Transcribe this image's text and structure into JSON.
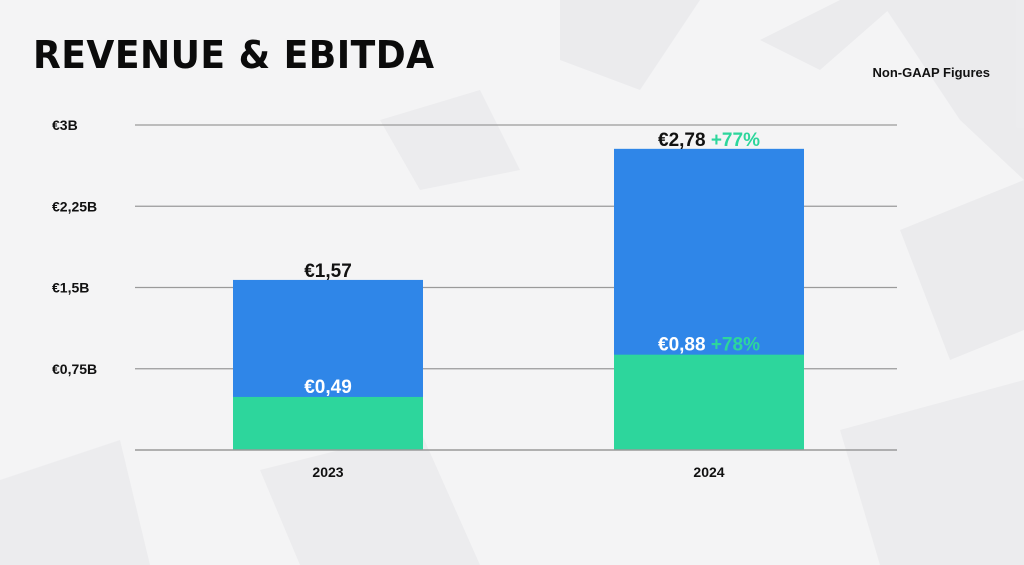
{
  "header": {
    "title": "REVENUE & EBITDA",
    "note": "Non-GAAP Figures"
  },
  "colors": {
    "revenue": "#2f86e8",
    "ebitda": "#2dd69c",
    "growth": "#2dd69c",
    "gridline": "#9a9a9a",
    "text": "#111111",
    "label_light": "#ffffff"
  },
  "chart_data": {
    "type": "bar",
    "stacked": false,
    "overlay": true,
    "categories": [
      "2023",
      "2024"
    ],
    "y_tick_labels": [
      "€3B",
      "€2,25B",
      "€1,5B",
      "€0,75B"
    ],
    "y_ticks": [
      3,
      2.25,
      1.5,
      0.75
    ],
    "ylim": [
      0,
      3
    ],
    "grid": true,
    "series": [
      {
        "key": "revenue",
        "values": [
          1.57,
          2.78
        ],
        "labels": [
          "€1,57",
          "€2,78"
        ],
        "growth": [
          "",
          "+77%"
        ]
      },
      {
        "key": "ebitda",
        "values": [
          0.49,
          0.88
        ],
        "labels": [
          "€0,49",
          "€0,88"
        ],
        "growth": [
          "",
          "+78%"
        ]
      }
    ]
  }
}
